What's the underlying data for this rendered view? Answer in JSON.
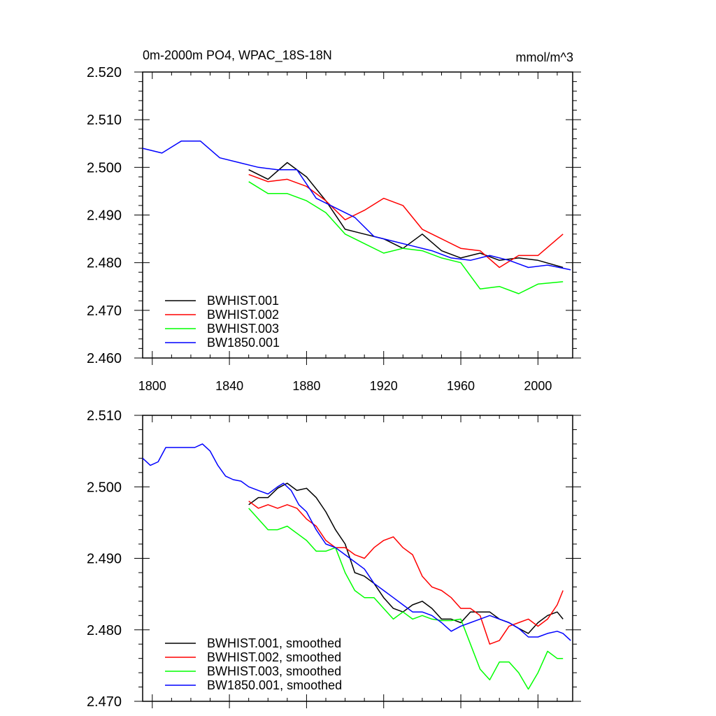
{
  "chart_data": [
    {
      "type": "line",
      "title_left": "0m-2000m PO4, WPAC_18S-18N",
      "title_right": "mmol/m^3",
      "xlim": [
        1795,
        2018
      ],
      "ylim": [
        2.46,
        2.52
      ],
      "x_ticks": [
        1800,
        1840,
        1880,
        1920,
        1960,
        2000
      ],
      "x_tick_labels": [
        "1800",
        "1840",
        "1880",
        "1920",
        "1960",
        "2000"
      ],
      "y_ticks": [
        2.46,
        2.47,
        2.48,
        2.49,
        2.5,
        2.51,
        2.52
      ],
      "y_tick_labels": [
        "2.460",
        "2.470",
        "2.480",
        "2.490",
        "2.500",
        "2.510",
        "2.520"
      ],
      "legend_position": "bottom-left",
      "series": [
        {
          "name": "BWHIST.001",
          "color": "#000000",
          "points": [
            [
              1850,
              2.4995
            ],
            [
              1860,
              2.4975
            ],
            [
              1870,
              2.501
            ],
            [
              1880,
              2.498
            ],
            [
              1890,
              2.493
            ],
            [
              1900,
              2.487
            ],
            [
              1910,
              2.486
            ],
            [
              1920,
              2.485
            ],
            [
              1930,
              2.483
            ],
            [
              1940,
              2.486
            ],
            [
              1950,
              2.4825
            ],
            [
              1960,
              2.481
            ],
            [
              1970,
              2.482
            ],
            [
              1980,
              2.4805
            ],
            [
              1990,
              2.481
            ],
            [
              2000,
              2.4805
            ],
            [
              2013,
              2.479
            ]
          ]
        },
        {
          "name": "BWHIST.002",
          "color": "#ff0000",
          "points": [
            [
              1850,
              2.4985
            ],
            [
              1860,
              2.497
            ],
            [
              1870,
              2.4975
            ],
            [
              1880,
              2.496
            ],
            [
              1890,
              2.493
            ],
            [
              1900,
              2.489
            ],
            [
              1910,
              2.491
            ],
            [
              1920,
              2.4935
            ],
            [
              1930,
              2.492
            ],
            [
              1940,
              2.487
            ],
            [
              1950,
              2.485
            ],
            [
              1960,
              2.483
            ],
            [
              1970,
              2.4825
            ],
            [
              1980,
              2.479
            ],
            [
              1990,
              2.4815
            ],
            [
              2000,
              2.4815
            ],
            [
              2013,
              2.486
            ]
          ]
        },
        {
          "name": "BWHIST.003",
          "color": "#00ff00",
          "points": [
            [
              1850,
              2.497
            ],
            [
              1860,
              2.4945
            ],
            [
              1870,
              2.4945
            ],
            [
              1880,
              2.493
            ],
            [
              1890,
              2.4905
            ],
            [
              1900,
              2.486
            ],
            [
              1910,
              2.484
            ],
            [
              1920,
              2.482
            ],
            [
              1930,
              2.483
            ],
            [
              1940,
              2.4825
            ],
            [
              1950,
              2.481
            ],
            [
              1960,
              2.48
            ],
            [
              1970,
              2.4745
            ],
            [
              1980,
              2.475
            ],
            [
              1990,
              2.4735
            ],
            [
              2000,
              2.4755
            ],
            [
              2013,
              2.476
            ]
          ]
        },
        {
          "name": "BW1850.001",
          "color": "#0000ff",
          "points": [
            [
              1795,
              2.504
            ],
            [
              1805,
              2.503
            ],
            [
              1815,
              2.5055
            ],
            [
              1825,
              2.5055
            ],
            [
              1835,
              2.502
            ],
            [
              1845,
              2.501
            ],
            [
              1855,
              2.5
            ],
            [
              1865,
              2.4995
            ],
            [
              1875,
              2.4995
            ],
            [
              1885,
              2.4935
            ],
            [
              1895,
              2.4915
            ],
            [
              1905,
              2.4895
            ],
            [
              1915,
              2.4855
            ],
            [
              1925,
              2.4845
            ],
            [
              1935,
              2.4835
            ],
            [
              1945,
              2.4825
            ],
            [
              1955,
              2.481
            ],
            [
              1965,
              2.4805
            ],
            [
              1975,
              2.4815
            ],
            [
              1985,
              2.4805
            ],
            [
              1995,
              2.479
            ],
            [
              2005,
              2.4795
            ],
            [
              2017,
              2.4785
            ]
          ]
        }
      ]
    },
    {
      "type": "line",
      "xlim": [
        1795,
        2018
      ],
      "ylim": [
        2.47,
        2.51
      ],
      "x_ticks": [
        1800,
        1840,
        1880,
        1920,
        1960,
        2000
      ],
      "y_ticks": [
        2.47,
        2.48,
        2.49,
        2.5,
        2.51
      ],
      "y_tick_labels": [
        "2.470",
        "2.480",
        "2.490",
        "2.500",
        "2.510"
      ],
      "legend_position": "bottom-left",
      "series": [
        {
          "name": "BWHIST.001, smoothed",
          "color": "#000000",
          "points": [
            [
              1850,
              2.4975
            ],
            [
              1855,
              2.4985
            ],
            [
              1860,
              2.4985
            ],
            [
              1865,
              2.4998
            ],
            [
              1870,
              2.5005
            ],
            [
              1875,
              2.4995
            ],
            [
              1880,
              2.4998
            ],
            [
              1885,
              2.4985
            ],
            [
              1890,
              2.4965
            ],
            [
              1895,
              2.494
            ],
            [
              1900,
              2.492
            ],
            [
              1905,
              2.488
            ],
            [
              1910,
              2.4875
            ],
            [
              1915,
              2.4865
            ],
            [
              1920,
              2.4845
            ],
            [
              1925,
              2.483
            ],
            [
              1930,
              2.4825
            ],
            [
              1935,
              2.4835
            ],
            [
              1940,
              2.484
            ],
            [
              1945,
              2.483
            ],
            [
              1950,
              2.4815
            ],
            [
              1955,
              2.4815
            ],
            [
              1960,
              2.481
            ],
            [
              1965,
              2.4825
            ],
            [
              1970,
              2.4825
            ],
            [
              1975,
              2.4825
            ],
            [
              1980,
              2.4815
            ],
            [
              1985,
              2.481
            ],
            [
              1990,
              2.4802
            ],
            [
              1995,
              2.4795
            ],
            [
              2000,
              2.481
            ],
            [
              2005,
              2.482
            ],
            [
              2010,
              2.4825
            ],
            [
              2013,
              2.4815
            ]
          ]
        },
        {
          "name": "BWHIST.002, smoothed",
          "color": "#ff0000",
          "points": [
            [
              1850,
              2.498
            ],
            [
              1855,
              2.497
            ],
            [
              1860,
              2.4975
            ],
            [
              1865,
              2.497
            ],
            [
              1870,
              2.4975
            ],
            [
              1875,
              2.497
            ],
            [
              1880,
              2.4955
            ],
            [
              1885,
              2.4945
            ],
            [
              1890,
              2.4925
            ],
            [
              1895,
              2.4915
            ],
            [
              1900,
              2.4915
            ],
            [
              1905,
              2.4905
            ],
            [
              1910,
              2.49
            ],
            [
              1915,
              2.4915
            ],
            [
              1920,
              2.4925
            ],
            [
              1925,
              2.493
            ],
            [
              1930,
              2.4915
            ],
            [
              1935,
              2.4905
            ],
            [
              1940,
              2.4875
            ],
            [
              1945,
              2.486
            ],
            [
              1950,
              2.4855
            ],
            [
              1955,
              2.4845
            ],
            [
              1960,
              2.483
            ],
            [
              1965,
              2.483
            ],
            [
              1970,
              2.482
            ],
            [
              1975,
              2.478
            ],
            [
              1980,
              2.4785
            ],
            [
              1985,
              2.4805
            ],
            [
              1990,
              2.481
            ],
            [
              1995,
              2.4815
            ],
            [
              2000,
              2.4805
            ],
            [
              2005,
              2.4815
            ],
            [
              2010,
              2.4835
            ],
            [
              2013,
              2.4855
            ]
          ]
        },
        {
          "name": "BWHIST.003, smoothed",
          "color": "#00ff00",
          "points": [
            [
              1850,
              2.497
            ],
            [
              1855,
              2.4955
            ],
            [
              1860,
              2.494
            ],
            [
              1865,
              2.494
            ],
            [
              1870,
              2.4945
            ],
            [
              1875,
              2.4935
            ],
            [
              1880,
              2.4925
            ],
            [
              1885,
              2.491
            ],
            [
              1890,
              2.491
            ],
            [
              1895,
              2.4915
            ],
            [
              1900,
              2.488
            ],
            [
              1905,
              2.4855
            ],
            [
              1910,
              2.4845
            ],
            [
              1915,
              2.4845
            ],
            [
              1920,
              2.483
            ],
            [
              1925,
              2.4815
            ],
            [
              1930,
              2.4825
            ],
            [
              1935,
              2.4815
            ],
            [
              1940,
              2.482
            ],
            [
              1945,
              2.4815
            ],
            [
              1950,
              2.4813
            ],
            [
              1955,
              2.4813
            ],
            [
              1960,
              2.4815
            ],
            [
              1965,
              2.478
            ],
            [
              1970,
              2.4745
            ],
            [
              1975,
              2.473
            ],
            [
              1980,
              2.4755
            ],
            [
              1985,
              2.4755
            ],
            [
              1990,
              2.474
            ],
            [
              1995,
              2.4717
            ],
            [
              2000,
              2.474
            ],
            [
              2005,
              2.477
            ],
            [
              2010,
              2.476
            ],
            [
              2013,
              2.476
            ]
          ]
        },
        {
          "name": "BW1850.001, smoothed",
          "color": "#0000ff",
          "points": [
            [
              1795,
              2.504
            ],
            [
              1799,
              2.503
            ],
            [
              1803,
              2.5035
            ],
            [
              1807,
              2.5055
            ],
            [
              1812,
              2.5055
            ],
            [
              1817,
              2.5055
            ],
            [
              1822,
              2.5055
            ],
            [
              1826,
              2.506
            ],
            [
              1830,
              2.505
            ],
            [
              1834,
              2.503
            ],
            [
              1838,
              2.5015
            ],
            [
              1842,
              2.501
            ],
            [
              1846,
              2.5008
            ],
            [
              1850,
              2.5
            ],
            [
              1855,
              2.4995
            ],
            [
              1860,
              2.499
            ],
            [
              1865,
              2.5
            ],
            [
              1868,
              2.5005
            ],
            [
              1872,
              2.4995
            ],
            [
              1876,
              2.4975
            ],
            [
              1880,
              2.4965
            ],
            [
              1885,
              2.494
            ],
            [
              1890,
              2.492
            ],
            [
              1895,
              2.4915
            ],
            [
              1900,
              2.4905
            ],
            [
              1905,
              2.4895
            ],
            [
              1910,
              2.4885
            ],
            [
              1915,
              2.4865
            ],
            [
              1920,
              2.4855
            ],
            [
              1925,
              2.4845
            ],
            [
              1930,
              2.4835
            ],
            [
              1935,
              2.4825
            ],
            [
              1940,
              2.4825
            ],
            [
              1945,
              2.482
            ],
            [
              1950,
              2.481
            ],
            [
              1955,
              2.4798
            ],
            [
              1960,
              2.4805
            ],
            [
              1965,
              2.481
            ],
            [
              1970,
              2.4815
            ],
            [
              1975,
              2.482
            ],
            [
              1980,
              2.4815
            ],
            [
              1985,
              2.481
            ],
            [
              1990,
              2.4802
            ],
            [
              1995,
              2.479
            ],
            [
              2000,
              2.479
            ],
            [
              2005,
              2.4795
            ],
            [
              2010,
              2.4798
            ],
            [
              2013,
              2.4795
            ],
            [
              2017,
              2.4785
            ]
          ]
        }
      ]
    }
  ]
}
